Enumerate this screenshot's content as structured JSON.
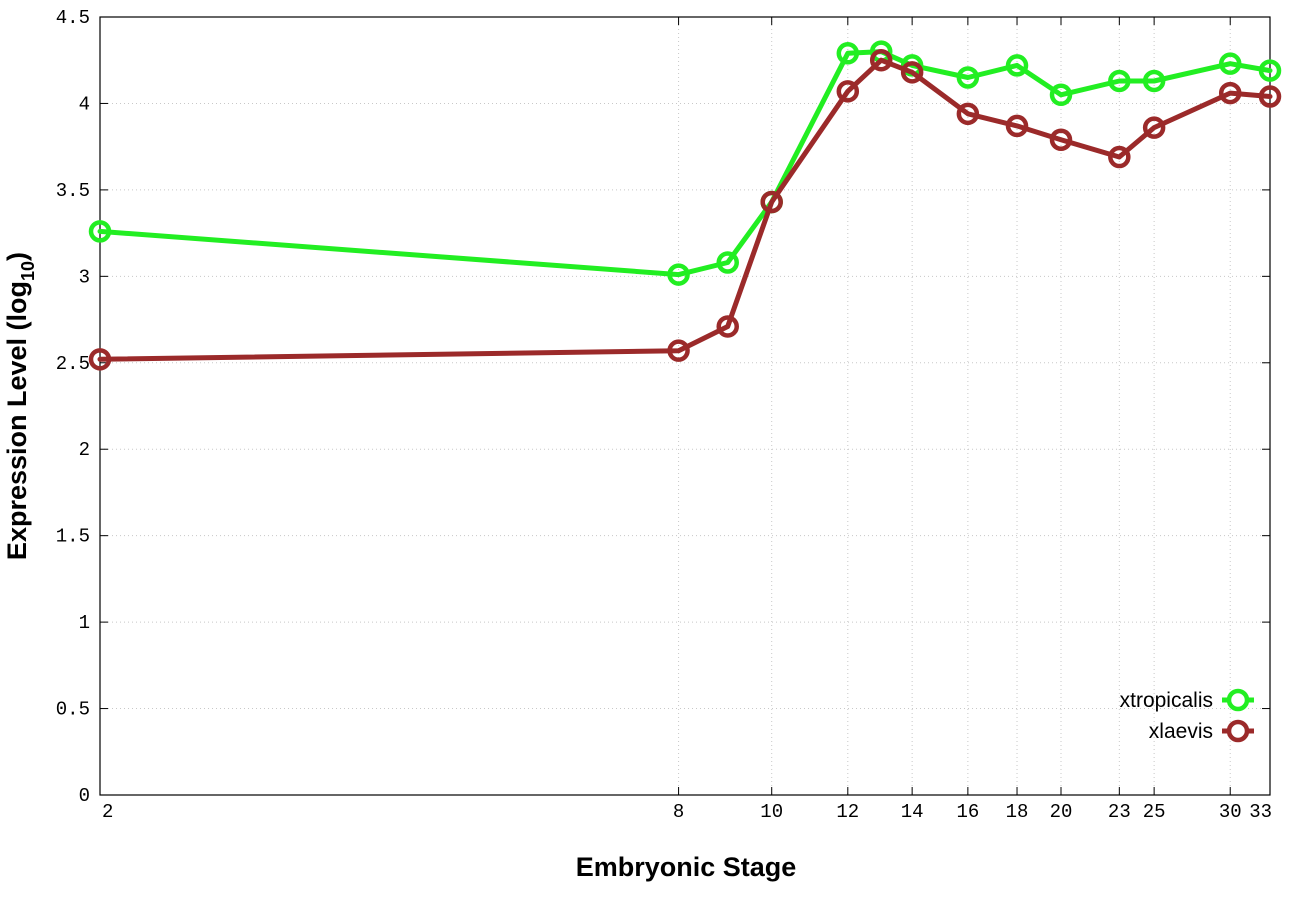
{
  "chart_data": {
    "type": "line",
    "title": "",
    "xlabel": "Embryonic Stage",
    "ylabel": "Expression Level (log10)",
    "ylabel_main": "Expression Level (log",
    "ylabel_sub": "10",
    "ylabel_close": ")",
    "x_scale": "log",
    "x_ticks": [
      "2",
      "8",
      "10",
      "12",
      "14",
      "16",
      "18",
      "20",
      "23",
      "25",
      "30",
      "33"
    ],
    "y_ticks": [
      "0",
      "0.5",
      "1",
      "1.5",
      "2",
      "2.5",
      "3",
      "3.5",
      "4",
      "4.5"
    ],
    "ylim": [
      0,
      4.5
    ],
    "xlim": [
      2,
      33
    ],
    "grid": true,
    "legend_position": "bottom-right",
    "series": [
      {
        "name": "xtropicalis",
        "color": "#22ee22",
        "x": [
          2,
          8,
          9,
          10,
          12,
          13,
          14,
          16,
          18,
          20,
          23,
          25,
          30,
          33
        ],
        "y": [
          3.26,
          3.01,
          3.08,
          3.43,
          4.29,
          4.3,
          4.22,
          4.15,
          4.22,
          4.05,
          4.13,
          4.13,
          4.23,
          4.19
        ]
      },
      {
        "name": "xlaevis",
        "color": "#9b2a2a",
        "x": [
          2,
          8,
          9,
          10,
          12,
          13,
          14,
          16,
          18,
          20,
          23,
          25,
          30,
          33
        ],
        "y": [
          2.52,
          2.57,
          2.71,
          3.43,
          4.07,
          4.25,
          4.18,
          3.94,
          3.87,
          3.79,
          3.69,
          3.86,
          4.06,
          4.04
        ]
      }
    ]
  }
}
